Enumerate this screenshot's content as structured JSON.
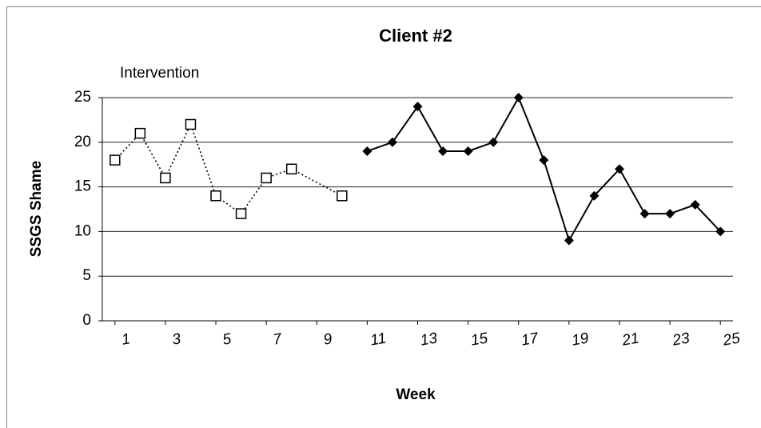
{
  "chart_data": {
    "type": "line",
    "title": "Client #2",
    "annotation": "Intervention",
    "xlabel": "Week",
    "ylabel": "SSGS Shame",
    "series": [
      {
        "x": [
          1,
          2,
          3,
          4,
          5,
          6,
          7,
          8,
          10
        ],
        "values": [
          18,
          21,
          16,
          22,
          14,
          12,
          16,
          17,
          14
        ],
        "color": "#000000",
        "marker": "square-open",
        "linestyle": "dotted"
      },
      {
        "x": [
          11,
          12,
          13,
          14,
          15,
          16,
          17,
          18,
          19,
          20,
          21,
          22,
          23,
          24,
          25
        ],
        "values": [
          19,
          20,
          24,
          19,
          19,
          20,
          25,
          18,
          9,
          14,
          17,
          12,
          12,
          13,
          10
        ],
        "color": "#000000",
        "marker": "diamond-filled",
        "linestyle": "solid"
      }
    ],
    "xlim": [
      0.5,
      25.5
    ],
    "xticks": [
      1,
      3,
      5,
      7,
      9,
      11,
      13,
      15,
      17,
      19,
      21,
      23,
      25
    ],
    "ylim": [
      0,
      25
    ],
    "yticks": [
      0,
      5,
      10,
      15,
      20,
      25
    ],
    "grid": true
  }
}
